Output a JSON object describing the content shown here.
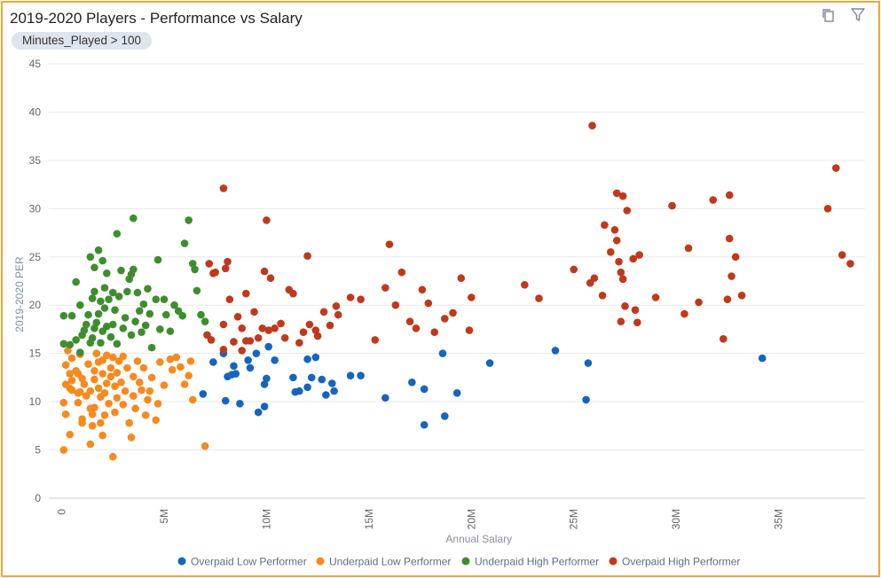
{
  "header": {
    "title": "2019-2020 Players - Performance vs Salary",
    "filter_label": "Minutes_Played > 100"
  },
  "toolbar": {
    "copy_icon": "copy-icon",
    "filter_icon": "filter-icon"
  },
  "colors": {
    "frame_border": "#f2a43a",
    "overpaid_low": "#1565c0",
    "underpaid_low": "#f68a1e",
    "underpaid_high": "#3e8e2e",
    "overpaid_high": "#c0391b"
  },
  "chart_data": {
    "type": "scatter",
    "title": "2019-2020 Players - Performance vs Salary",
    "xlabel": "Annual Salary",
    "ylabel": "2019-2020 PER",
    "xlim": [
      0,
      39000000
    ],
    "ylim": [
      0,
      45
    ],
    "x_ticks": [
      {
        "value": 0,
        "label": "0"
      },
      {
        "value": 5000000,
        "label": "5M"
      },
      {
        "value": 10000000,
        "label": "10M"
      },
      {
        "value": 15000000,
        "label": "15M"
      },
      {
        "value": 20000000,
        "label": "20M"
      },
      {
        "value": 25000000,
        "label": "25M"
      },
      {
        "value": 30000000,
        "label": "30M"
      },
      {
        "value": 35000000,
        "label": "35M"
      }
    ],
    "y_ticks": [
      0,
      5,
      10,
      15,
      20,
      25,
      30,
      35,
      40,
      45
    ],
    "legend_position": "bottom",
    "series": [
      {
        "name": "Overpaid Low Performer",
        "color": "#1565c0",
        "points": [
          [
            6.9,
            10.8
          ],
          [
            7.4,
            14.1
          ],
          [
            7.9,
            15.0
          ],
          [
            8.0,
            10.1
          ],
          [
            8.1,
            12.6
          ],
          [
            8.3,
            12.8
          ],
          [
            8.4,
            13.7
          ],
          [
            8.5,
            12.9
          ],
          [
            8.7,
            9.8
          ],
          [
            9.1,
            14.3
          ],
          [
            9.2,
            13.5
          ],
          [
            9.5,
            15.0
          ],
          [
            9.6,
            8.9
          ],
          [
            9.9,
            9.5
          ],
          [
            9.9,
            11.8
          ],
          [
            10.0,
            12.4
          ],
          [
            10.1,
            15.7
          ],
          [
            10.4,
            14.3
          ],
          [
            11.3,
            12.5
          ],
          [
            11.4,
            11.0
          ],
          [
            11.6,
            11.1
          ],
          [
            12.0,
            14.4
          ],
          [
            12.0,
            11.5
          ],
          [
            12.2,
            12.5
          ],
          [
            12.4,
            14.6
          ],
          [
            12.7,
            12.3
          ],
          [
            12.9,
            10.7
          ],
          [
            13.2,
            11.9
          ],
          [
            13.3,
            11.1
          ],
          [
            14.1,
            12.7
          ],
          [
            14.6,
            12.7
          ],
          [
            15.8,
            10.4
          ],
          [
            17.1,
            12.0
          ],
          [
            17.7,
            7.6
          ],
          [
            17.7,
            11.3
          ],
          [
            18.6,
            15.0
          ],
          [
            18.7,
            8.5
          ],
          [
            19.3,
            10.9
          ],
          [
            20.9,
            14.0
          ],
          [
            24.1,
            15.3
          ],
          [
            25.6,
            10.2
          ],
          [
            25.7,
            14.0
          ],
          [
            34.2,
            14.5
          ]
        ]
      },
      {
        "name": "Underpaid Low Performer",
        "color": "#f68a1e",
        "points": [
          [
            0.1,
            5.0
          ],
          [
            0.1,
            9.9
          ],
          [
            0.2,
            8.7
          ],
          [
            0.2,
            11.8
          ],
          [
            0.2,
            13.8
          ],
          [
            0.3,
            15.3
          ],
          [
            0.4,
            11.4
          ],
          [
            0.4,
            12.9
          ],
          [
            0.4,
            6.6
          ],
          [
            0.5,
            11.2
          ],
          [
            0.5,
            12.2
          ],
          [
            0.5,
            14.5
          ],
          [
            0.7,
            13.2
          ],
          [
            0.8,
            12.9
          ],
          [
            0.8,
            10.9
          ],
          [
            0.8,
            9.9
          ],
          [
            0.9,
            11.0
          ],
          [
            0.9,
            14.9
          ],
          [
            1.0,
            7.8
          ],
          [
            1.0,
            8.2
          ],
          [
            1.0,
            12.4
          ],
          [
            1.1,
            11.8
          ],
          [
            1.2,
            10.6
          ],
          [
            1.3,
            13.9
          ],
          [
            1.4,
            9.3
          ],
          [
            1.4,
            11.1
          ],
          [
            1.4,
            5.6
          ],
          [
            1.5,
            7.5
          ],
          [
            1.5,
            8.7
          ],
          [
            1.6,
            13.2
          ],
          [
            1.6,
            12.3
          ],
          [
            1.6,
            9.4
          ],
          [
            1.7,
            15.0
          ],
          [
            1.8,
            14.1
          ],
          [
            1.8,
            11.4
          ],
          [
            1.9,
            10.5
          ],
          [
            1.9,
            7.8
          ],
          [
            2.0,
            6.5
          ],
          [
            2.0,
            12.9
          ],
          [
            2.0,
            14.3
          ],
          [
            2.1,
            8.6
          ],
          [
            2.1,
            10.9
          ],
          [
            2.2,
            11.9
          ],
          [
            2.2,
            14.8
          ],
          [
            2.3,
            9.8
          ],
          [
            2.4,
            12.6
          ],
          [
            2.4,
            13.5
          ],
          [
            2.5,
            14.6
          ],
          [
            2.5,
            4.3
          ],
          [
            2.6,
            8.9
          ],
          [
            2.6,
            11.6
          ],
          [
            2.7,
            10.4
          ],
          [
            2.7,
            13.0
          ],
          [
            2.8,
            14.2
          ],
          [
            2.9,
            12.0
          ],
          [
            3.0,
            9.7
          ],
          [
            3.0,
            14.7
          ],
          [
            3.1,
            11.1
          ],
          [
            3.2,
            13.5
          ],
          [
            3.3,
            7.8
          ],
          [
            3.4,
            6.3
          ],
          [
            3.5,
            10.6
          ],
          [
            3.5,
            12.6
          ],
          [
            3.6,
            9.3
          ],
          [
            3.7,
            14.2
          ],
          [
            3.8,
            12.0
          ],
          [
            3.9,
            11.2
          ],
          [
            4.0,
            13.5
          ],
          [
            4.1,
            8.6
          ],
          [
            4.2,
            10.2
          ],
          [
            4.3,
            11.1
          ],
          [
            4.4,
            12.5
          ],
          [
            4.6,
            8.1
          ],
          [
            4.7,
            9.8
          ],
          [
            4.8,
            14.1
          ],
          [
            5.0,
            11.7
          ],
          [
            5.3,
            14.4
          ],
          [
            5.4,
            13.3
          ],
          [
            5.6,
            14.6
          ],
          [
            5.8,
            13.6
          ],
          [
            6.0,
            11.8
          ],
          [
            6.2,
            12.7
          ],
          [
            6.3,
            14.2
          ],
          [
            6.4,
            10.2
          ],
          [
            7.0,
            5.4
          ]
        ]
      },
      {
        "name": "Underpaid High Performer",
        "color": "#3e8e2e",
        "points": [
          [
            0.1,
            16.0
          ],
          [
            0.1,
            18.9
          ],
          [
            0.4,
            15.9
          ],
          [
            0.5,
            18.9
          ],
          [
            0.7,
            22.4
          ],
          [
            0.7,
            16.4
          ],
          [
            0.9,
            20.0
          ],
          [
            0.9,
            15.1
          ],
          [
            1.0,
            16.9
          ],
          [
            1.1,
            17.4
          ],
          [
            1.2,
            18.0
          ],
          [
            1.3,
            19.0
          ],
          [
            1.4,
            16.1
          ],
          [
            1.4,
            25.0
          ],
          [
            1.5,
            20.7
          ],
          [
            1.5,
            16.6
          ],
          [
            1.6,
            21.4
          ],
          [
            1.6,
            17.6
          ],
          [
            1.6,
            23.9
          ],
          [
            1.7,
            18.2
          ],
          [
            1.8,
            19.1
          ],
          [
            1.8,
            25.7
          ],
          [
            1.9,
            20.4
          ],
          [
            1.9,
            16.1
          ],
          [
            2.0,
            24.6
          ],
          [
            2.0,
            17.3
          ],
          [
            2.1,
            21.8
          ],
          [
            2.1,
            19.7
          ],
          [
            2.2,
            17.8
          ],
          [
            2.2,
            23.3
          ],
          [
            2.3,
            20.6
          ],
          [
            2.4,
            16.7
          ],
          [
            2.5,
            21.3
          ],
          [
            2.5,
            18.0
          ],
          [
            2.6,
            19.5
          ],
          [
            2.7,
            27.4
          ],
          [
            2.7,
            16.0
          ],
          [
            2.8,
            20.9
          ],
          [
            2.9,
            23.6
          ],
          [
            3.0,
            17.6
          ],
          [
            3.1,
            18.7
          ],
          [
            3.2,
            21.4
          ],
          [
            3.3,
            22.7
          ],
          [
            3.4,
            16.9
          ],
          [
            3.4,
            23.2
          ],
          [
            3.5,
            29.0
          ],
          [
            3.5,
            23.7
          ],
          [
            3.6,
            18.3
          ],
          [
            3.7,
            21.3
          ],
          [
            3.8,
            19.4
          ],
          [
            3.9,
            17.2
          ],
          [
            4.0,
            20.1
          ],
          [
            4.1,
            17.9
          ],
          [
            4.2,
            21.7
          ],
          [
            4.3,
            19.1
          ],
          [
            4.4,
            15.6
          ],
          [
            4.6,
            20.6
          ],
          [
            4.7,
            24.7
          ],
          [
            4.8,
            17.5
          ],
          [
            5.0,
            20.6
          ],
          [
            5.1,
            19.0
          ],
          [
            5.3,
            17.3
          ],
          [
            5.5,
            20.0
          ],
          [
            5.7,
            19.4
          ],
          [
            5.9,
            18.9
          ],
          [
            6.0,
            26.4
          ],
          [
            6.2,
            28.8
          ],
          [
            6.4,
            24.3
          ],
          [
            6.5,
            23.7
          ],
          [
            6.6,
            21.5
          ],
          [
            6.8,
            19.0
          ],
          [
            7.0,
            18.3
          ]
        ]
      },
      {
        "name": "Overpaid High Performer",
        "color": "#c0391b",
        "points": [
          [
            7.1,
            16.9
          ],
          [
            7.2,
            24.3
          ],
          [
            7.3,
            16.4
          ],
          [
            7.4,
            23.3
          ],
          [
            7.5,
            23.4
          ],
          [
            7.9,
            32.1
          ],
          [
            7.9,
            18.0
          ],
          [
            7.9,
            15.4
          ],
          [
            8.0,
            23.8
          ],
          [
            8.1,
            24.5
          ],
          [
            8.2,
            20.6
          ],
          [
            8.4,
            16.2
          ],
          [
            8.6,
            18.8
          ],
          [
            8.8,
            17.6
          ],
          [
            8.8,
            15.3
          ],
          [
            9.0,
            21.2
          ],
          [
            9.0,
            16.3
          ],
          [
            9.2,
            16.3
          ],
          [
            9.4,
            19.3
          ],
          [
            9.6,
            16.6
          ],
          [
            9.8,
            17.6
          ],
          [
            9.9,
            23.5
          ],
          [
            10.0,
            28.8
          ],
          [
            10.1,
            17.4
          ],
          [
            10.2,
            22.8
          ],
          [
            10.4,
            17.6
          ],
          [
            10.7,
            18.1
          ],
          [
            10.9,
            16.6
          ],
          [
            11.1,
            21.6
          ],
          [
            11.3,
            21.2
          ],
          [
            11.6,
            16.1
          ],
          [
            11.8,
            17.2
          ],
          [
            12.0,
            25.1
          ],
          [
            12.1,
            18.0
          ],
          [
            12.4,
            17.4
          ],
          [
            12.5,
            16.8
          ],
          [
            12.8,
            19.3
          ],
          [
            13.1,
            17.9
          ],
          [
            13.4,
            19.9
          ],
          [
            13.5,
            19.0
          ],
          [
            14.1,
            20.8
          ],
          [
            14.6,
            20.6
          ],
          [
            15.3,
            16.4
          ],
          [
            15.8,
            21.8
          ],
          [
            16.0,
            26.3
          ],
          [
            16.3,
            20.0
          ],
          [
            16.6,
            23.4
          ],
          [
            17.0,
            18.3
          ],
          [
            17.3,
            17.6
          ],
          [
            17.6,
            21.6
          ],
          [
            17.9,
            20.2
          ],
          [
            18.2,
            17.2
          ],
          [
            18.7,
            18.6
          ],
          [
            19.1,
            19.2
          ],
          [
            19.5,
            22.8
          ],
          [
            19.9,
            17.4
          ],
          [
            20.0,
            20.8
          ],
          [
            22.6,
            22.1
          ],
          [
            23.3,
            20.7
          ],
          [
            25.0,
            23.7
          ],
          [
            25.8,
            22.3
          ],
          [
            25.9,
            38.6
          ],
          [
            26.0,
            22.8
          ],
          [
            26.4,
            21.0
          ],
          [
            26.5,
            28.3
          ],
          [
            26.8,
            25.5
          ],
          [
            27.0,
            27.8
          ],
          [
            27.1,
            31.6
          ],
          [
            27.1,
            26.7
          ],
          [
            27.2,
            24.5
          ],
          [
            27.3,
            23.4
          ],
          [
            27.3,
            18.3
          ],
          [
            27.4,
            31.3
          ],
          [
            27.4,
            22.7
          ],
          [
            27.5,
            19.9
          ],
          [
            27.6,
            29.8
          ],
          [
            27.9,
            24.8
          ],
          [
            28.0,
            19.5
          ],
          [
            28.1,
            18.2
          ],
          [
            28.2,
            25.2
          ],
          [
            29.0,
            20.8
          ],
          [
            29.8,
            30.3
          ],
          [
            30.4,
            19.1
          ],
          [
            30.6,
            25.9
          ],
          [
            31.1,
            20.3
          ],
          [
            31.8,
            30.9
          ],
          [
            32.3,
            16.5
          ],
          [
            32.5,
            20.6
          ],
          [
            32.6,
            31.4
          ],
          [
            32.6,
            26.9
          ],
          [
            32.7,
            23.0
          ],
          [
            32.9,
            25.0
          ],
          [
            33.2,
            21.0
          ],
          [
            37.4,
            30.0
          ],
          [
            37.8,
            34.2
          ],
          [
            38.1,
            25.2
          ],
          [
            38.5,
            24.3
          ]
        ]
      }
    ]
  }
}
